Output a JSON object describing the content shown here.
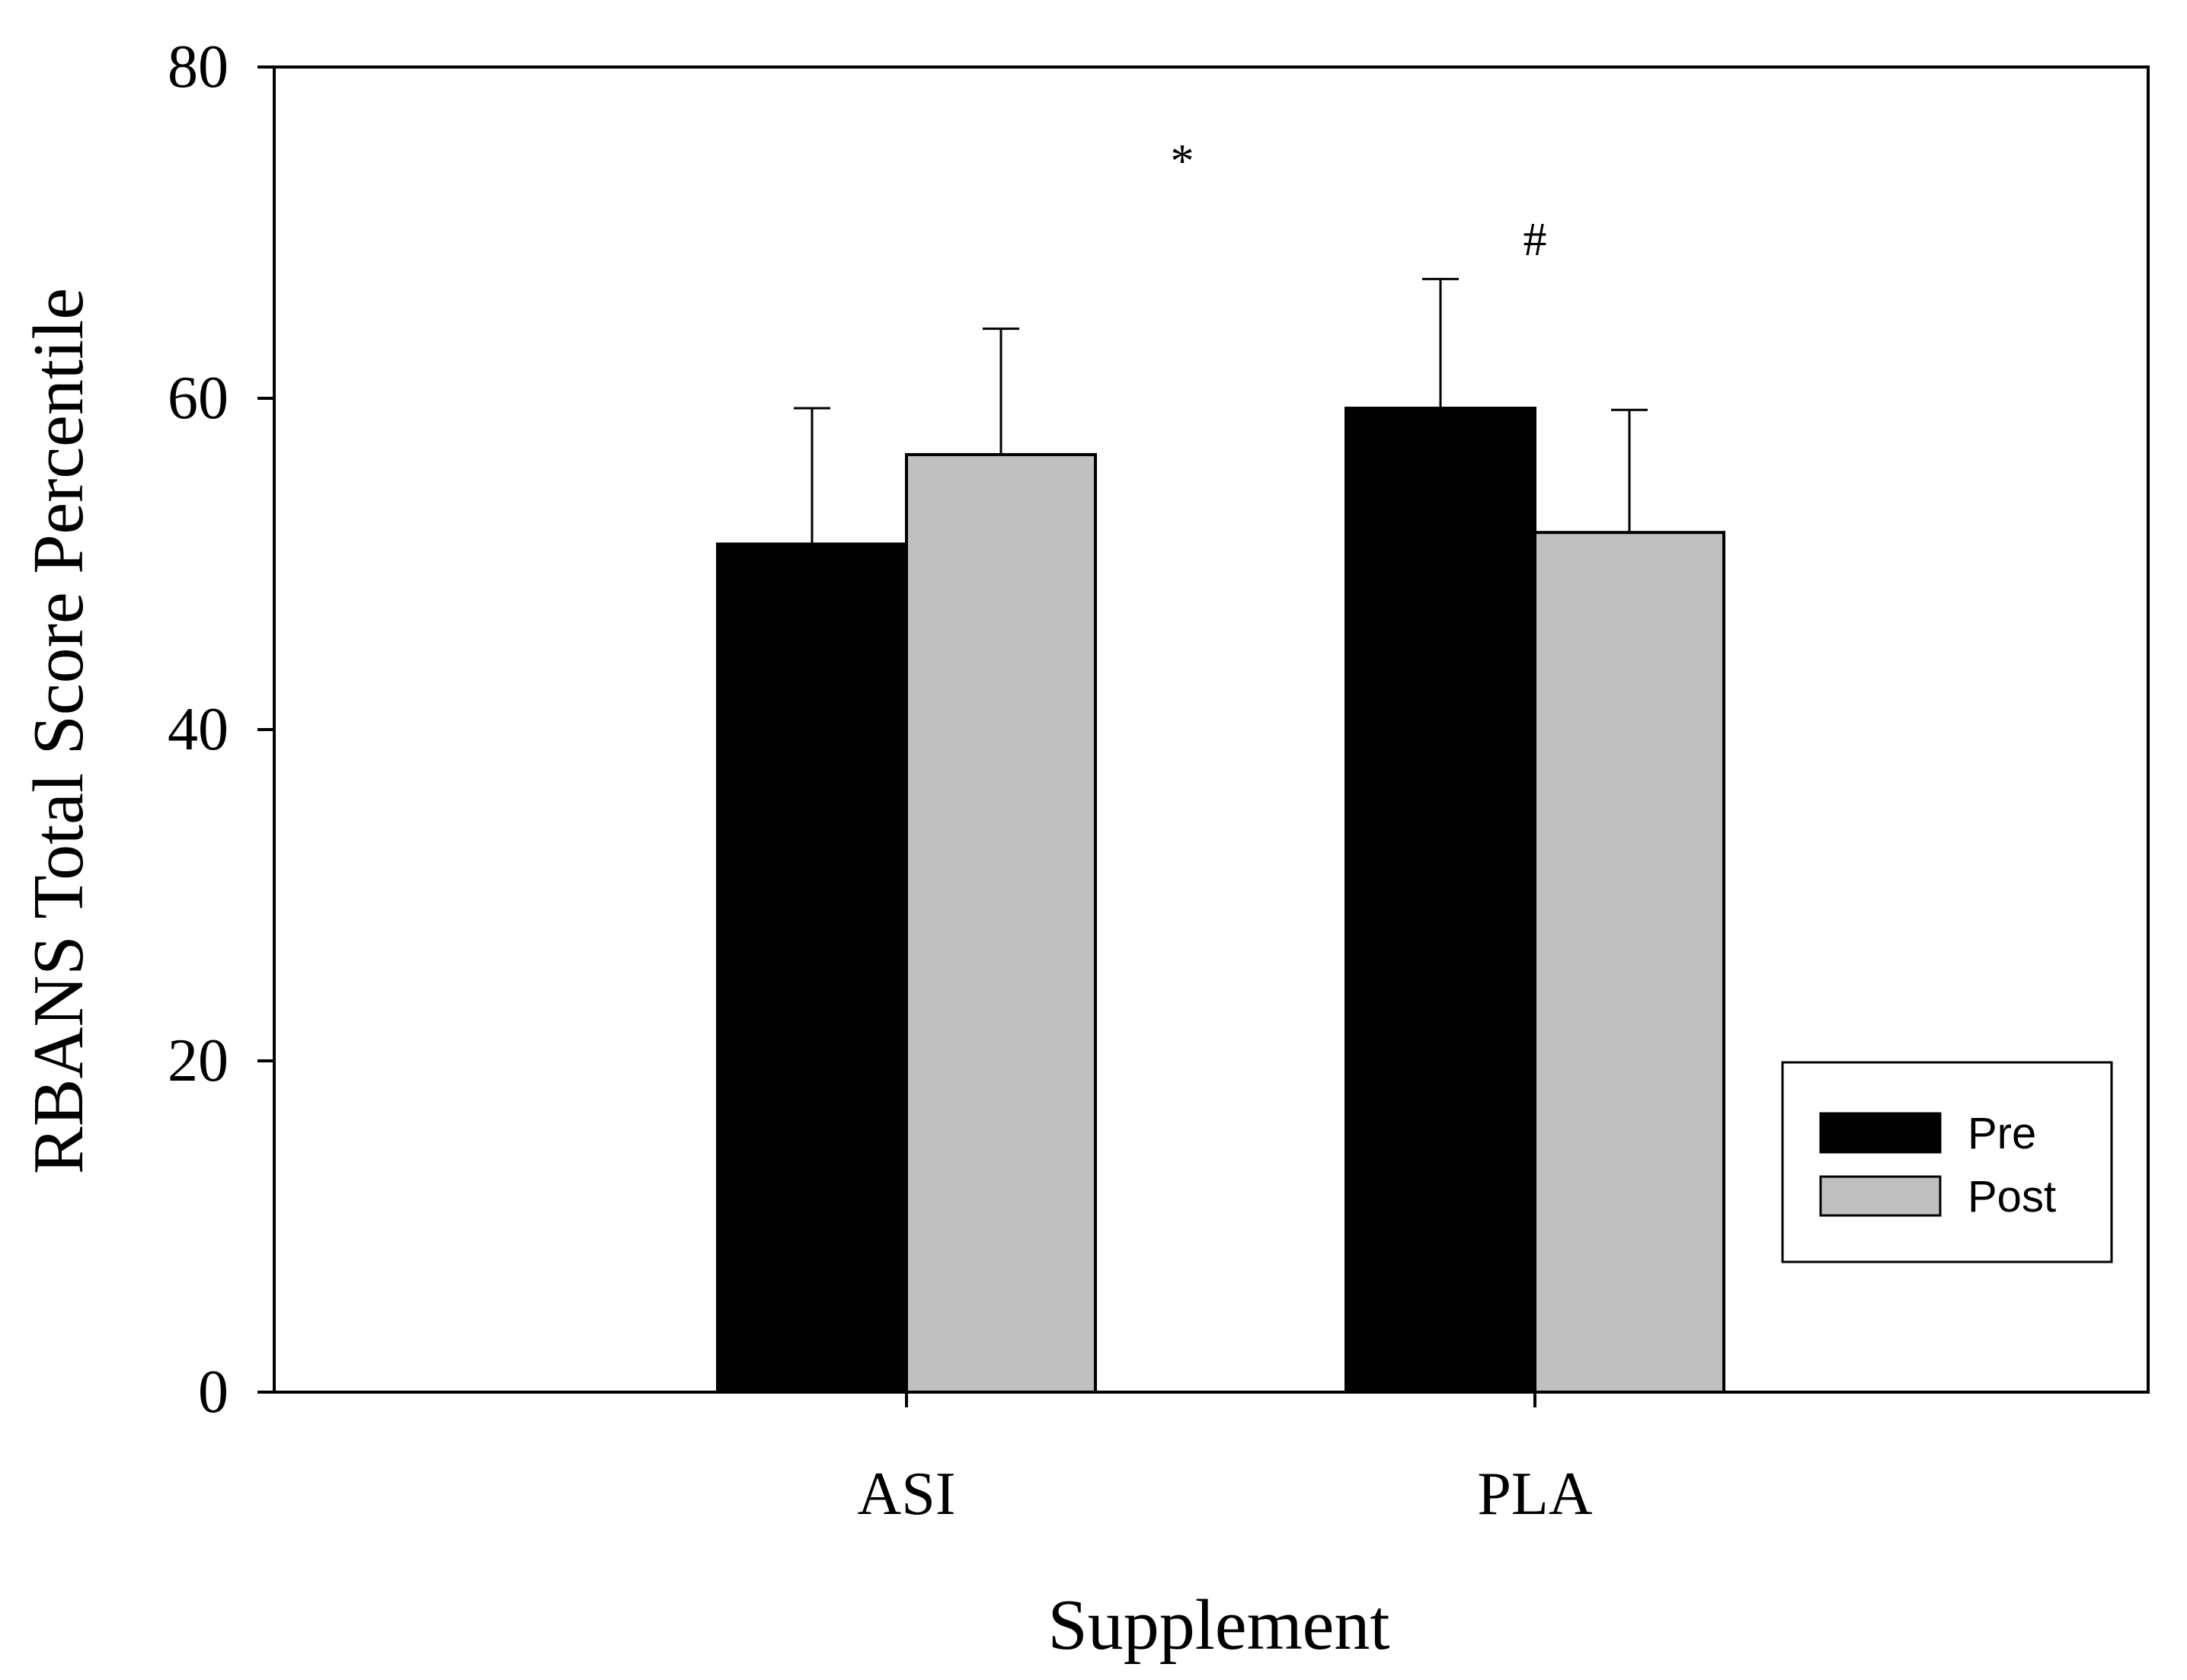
{
  "chart_data": {
    "type": "bar",
    "title": "",
    "xlabel": "Supplement",
    "ylabel": "RBANS Total Score Percentile",
    "ylim": [
      0,
      80
    ],
    "yticks": [
      "0",
      "20",
      "40",
      "60",
      "80"
    ],
    "categories": [
      "ASI",
      "PLA"
    ],
    "series": [
      {
        "name": "Pre",
        "color": "#000000",
        "values": [
          51.2,
          59.4
        ],
        "errors": [
          8.2,
          7.8
        ]
      },
      {
        "name": "Post",
        "color": "#c0c0c0",
        "values": [
          56.6,
          51.9
        ],
        "errors": [
          7.6,
          7.4
        ]
      }
    ],
    "annotations": [
      {
        "text": "*",
        "category": "between",
        "y": 73.5
      },
      {
        "text": "#",
        "category": "PLA",
        "y": 69.0
      }
    ],
    "legend": {
      "position": "lower-right",
      "entries": [
        "Pre",
        "Post"
      ]
    },
    "grid": false
  }
}
